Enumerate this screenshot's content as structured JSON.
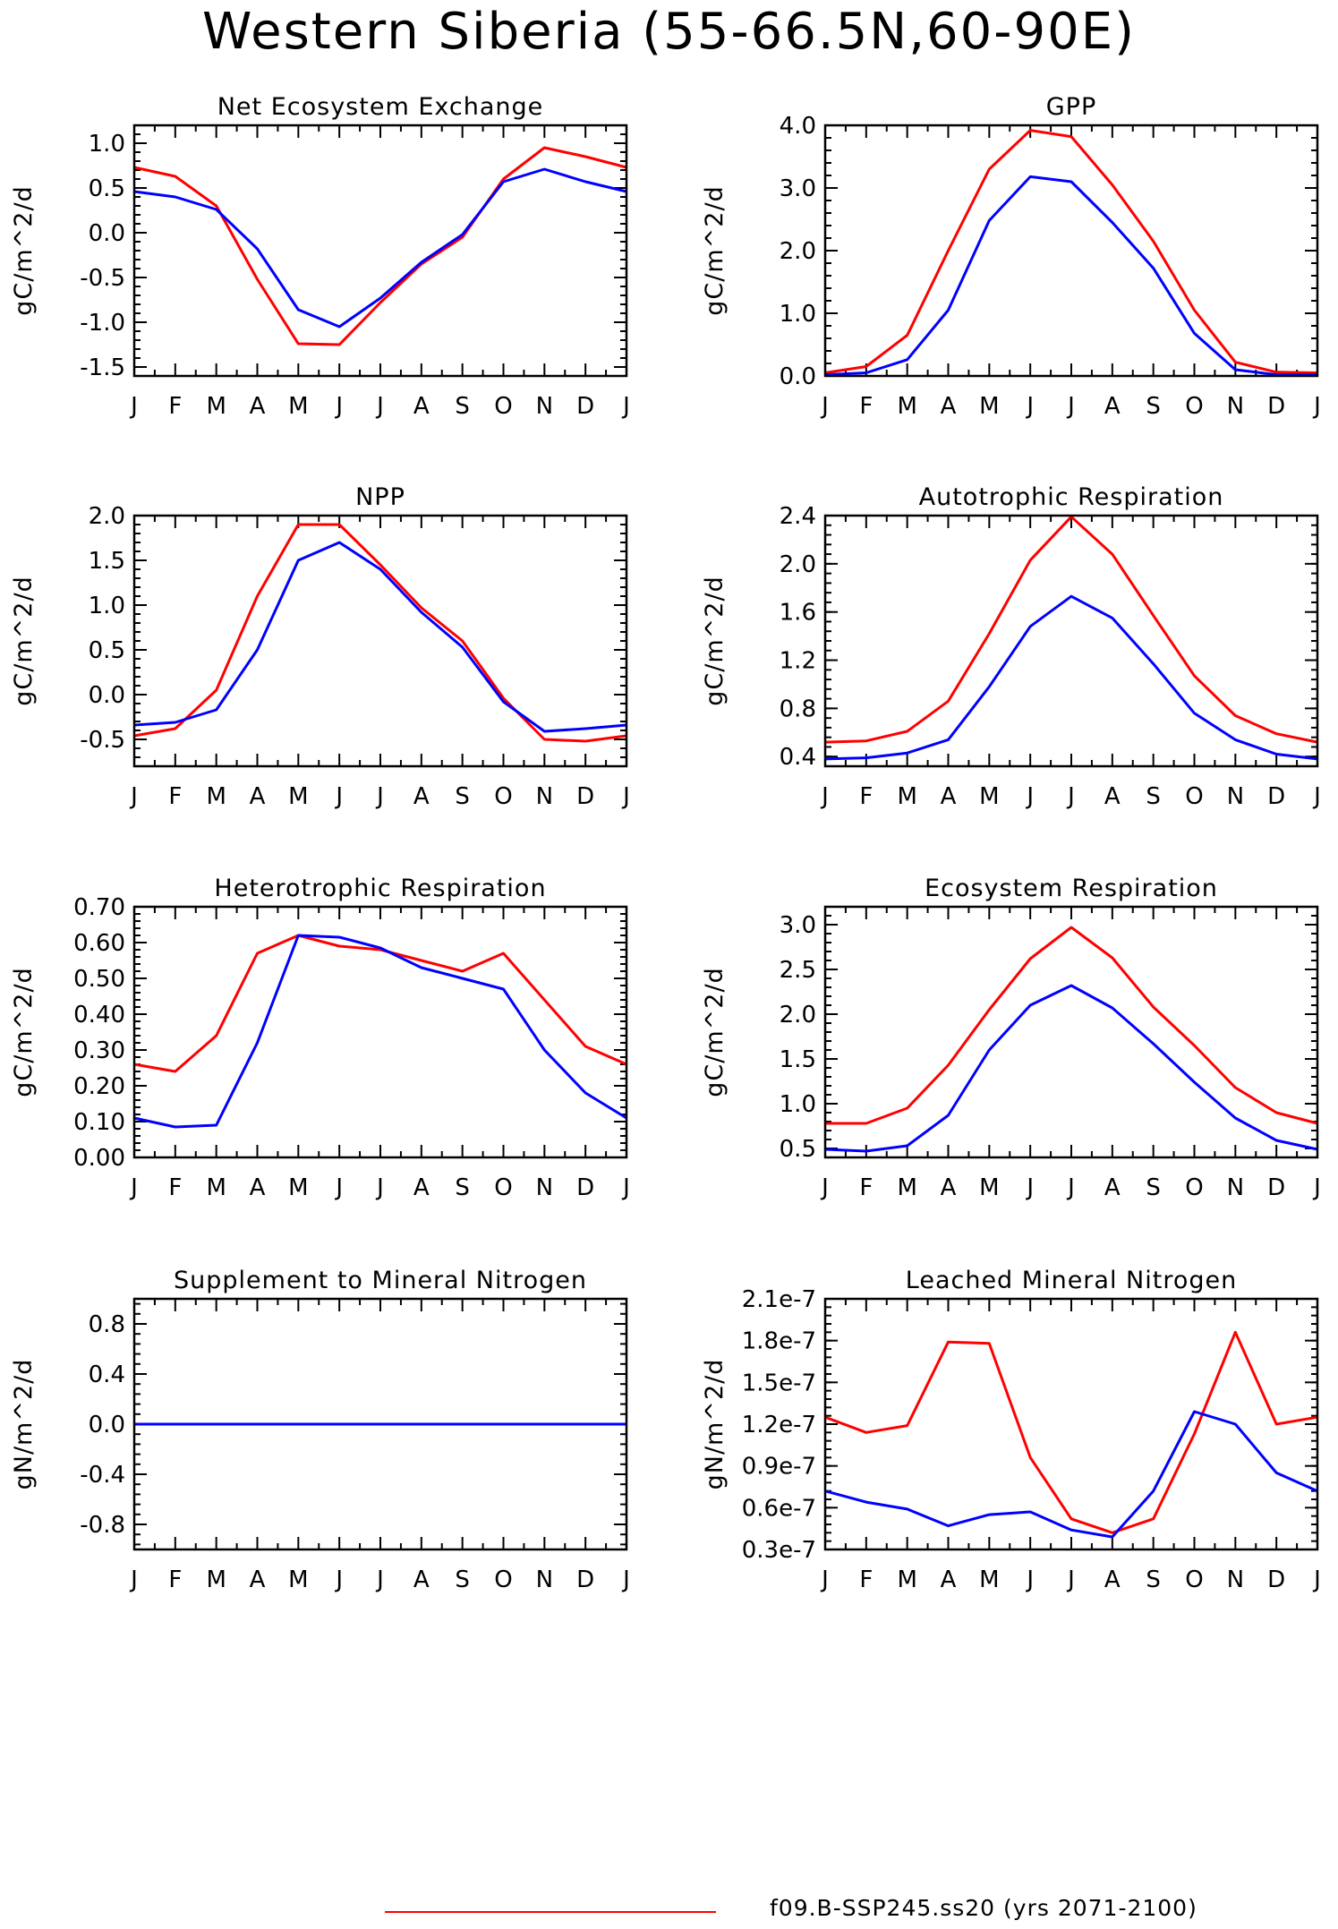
{
  "title": "Western Siberia (55-66.5N,60-90E)",
  "legend": [
    {
      "label": "f09.B-SSP245.ss20 (yrs 2071-2100)",
      "color": "#ff0000"
    }
  ],
  "colors": {
    "red": "#ff0000",
    "blue": "#0000ff"
  },
  "chart_data": [
    {
      "type": "line",
      "title": "Net Ecosystem Exchange",
      "ylabel": "gC/m^2/d",
      "categories": [
        "J",
        "F",
        "M",
        "A",
        "M",
        "J",
        "J",
        "A",
        "S",
        "O",
        "N",
        "D",
        "J"
      ],
      "ylim": [
        -1.6,
        1.2
      ],
      "yticks": [
        -1.5,
        -1.0,
        -0.5,
        0.0,
        0.5,
        1.0
      ],
      "ytick_labels": [
        "-1.5",
        "-1.0",
        "-0.5",
        "0.0",
        "0.5",
        "1.0"
      ],
      "series": [
        {
          "color": "#ff0000",
          "values": [
            0.73,
            0.63,
            0.3,
            -0.52,
            -1.24,
            -1.25,
            -0.78,
            -0.35,
            -0.05,
            0.6,
            0.95,
            0.85,
            0.73
          ]
        },
        {
          "color": "#0000ff",
          "values": [
            0.46,
            0.4,
            0.26,
            -0.18,
            -0.86,
            -1.05,
            -0.73,
            -0.33,
            -0.02,
            0.57,
            0.71,
            0.57,
            0.46
          ]
        }
      ]
    },
    {
      "type": "line",
      "title": "GPP",
      "ylabel": "gC/m^2/d",
      "categories": [
        "J",
        "F",
        "M",
        "A",
        "M",
        "J",
        "J",
        "A",
        "S",
        "O",
        "N",
        "D",
        "J"
      ],
      "ylim": [
        0,
        4.0
      ],
      "yticks": [
        0,
        1,
        2,
        3,
        4
      ],
      "ytick_labels": [
        "0.0",
        "1.0",
        "2.0",
        "3.0",
        "4.0"
      ],
      "series": [
        {
          "color": "#ff0000",
          "values": [
            0.05,
            0.15,
            0.65,
            2.0,
            3.3,
            3.92,
            3.82,
            3.05,
            2.15,
            1.05,
            0.22,
            0.06,
            0.05
          ]
        },
        {
          "color": "#0000ff",
          "values": [
            0.02,
            0.05,
            0.26,
            1.05,
            2.48,
            3.18,
            3.1,
            2.45,
            1.72,
            0.68,
            0.1,
            0.02,
            0.02
          ]
        }
      ]
    },
    {
      "type": "line",
      "title": "NPP",
      "ylabel": "gC/m^2/d",
      "categories": [
        "J",
        "F",
        "M",
        "A",
        "M",
        "J",
        "J",
        "A",
        "S",
        "O",
        "N",
        "D",
        "J"
      ],
      "ylim": [
        -0.8,
        2.0
      ],
      "yticks": [
        -0.5,
        0.0,
        0.5,
        1.0,
        1.5,
        2.0
      ],
      "ytick_labels": [
        "-0.5",
        "0.0",
        "0.5",
        "1.0",
        "1.5",
        "2.0"
      ],
      "series": [
        {
          "color": "#ff0000",
          "values": [
            -0.46,
            -0.38,
            0.05,
            1.1,
            1.9,
            1.9,
            1.45,
            0.97,
            0.6,
            -0.04,
            -0.5,
            -0.52,
            -0.46
          ]
        },
        {
          "color": "#0000ff",
          "values": [
            -0.34,
            -0.31,
            -0.17,
            0.5,
            1.5,
            1.7,
            1.4,
            0.92,
            0.53,
            -0.08,
            -0.41,
            -0.38,
            -0.34
          ]
        }
      ]
    },
    {
      "type": "line",
      "title": "Autotrophic Respiration",
      "ylabel": "gC/m^2/d",
      "categories": [
        "J",
        "F",
        "M",
        "A",
        "M",
        "J",
        "J",
        "A",
        "S",
        "O",
        "N",
        "D",
        "J"
      ],
      "ylim": [
        0.32,
        2.4
      ],
      "yticks": [
        0.4,
        0.8,
        1.2,
        1.6,
        2.0,
        2.4
      ],
      "ytick_labels": [
        "0.4",
        "0.8",
        "1.2",
        "1.6",
        "2.0",
        "2.4"
      ],
      "series": [
        {
          "color": "#ff0000",
          "values": [
            0.52,
            0.53,
            0.61,
            0.86,
            1.42,
            2.03,
            2.39,
            2.08,
            1.57,
            1.07,
            0.74,
            0.59,
            0.52
          ]
        },
        {
          "color": "#0000ff",
          "values": [
            0.38,
            0.39,
            0.43,
            0.54,
            0.98,
            1.48,
            1.73,
            1.55,
            1.17,
            0.76,
            0.54,
            0.42,
            0.38
          ]
        }
      ]
    },
    {
      "type": "line",
      "title": "Heterotrophic Respiration",
      "ylabel": "gC/m^2/d",
      "categories": [
        "J",
        "F",
        "M",
        "A",
        "M",
        "J",
        "J",
        "A",
        "S",
        "O",
        "N",
        "D",
        "J"
      ],
      "ylim": [
        0,
        0.7
      ],
      "yticks": [
        0,
        0.1,
        0.2,
        0.3,
        0.4,
        0.5,
        0.6,
        0.7
      ],
      "ytick_labels": [
        "0.00",
        "0.10",
        "0.20",
        "0.30",
        "0.40",
        "0.50",
        "0.60",
        "0.70"
      ],
      "series": [
        {
          "color": "#ff0000",
          "values": [
            0.26,
            0.24,
            0.34,
            0.57,
            0.62,
            0.59,
            0.58,
            0.55,
            0.52,
            0.57,
            0.44,
            0.31,
            0.26
          ]
        },
        {
          "color": "#0000ff",
          "values": [
            0.11,
            0.085,
            0.09,
            0.32,
            0.62,
            0.615,
            0.585,
            0.53,
            0.5,
            0.47,
            0.3,
            0.18,
            0.11
          ]
        }
      ]
    },
    {
      "type": "line",
      "title": "Ecosystem Respiration",
      "ylabel": "gC/m^2/d",
      "categories": [
        "J",
        "F",
        "M",
        "A",
        "M",
        "J",
        "J",
        "A",
        "S",
        "O",
        "N",
        "D",
        "J"
      ],
      "ylim": [
        0.4,
        3.2
      ],
      "yticks": [
        0.5,
        1.0,
        1.5,
        2.0,
        2.5,
        3.0
      ],
      "ytick_labels": [
        "0.5",
        "1.0",
        "1.5",
        "2.0",
        "2.5",
        "3.0"
      ],
      "series": [
        {
          "color": "#ff0000",
          "values": [
            0.78,
            0.78,
            0.95,
            1.43,
            2.05,
            2.62,
            2.97,
            2.63,
            2.08,
            1.65,
            1.18,
            0.9,
            0.78
          ]
        },
        {
          "color": "#0000ff",
          "values": [
            0.49,
            0.47,
            0.53,
            0.87,
            1.6,
            2.1,
            2.32,
            2.07,
            1.67,
            1.24,
            0.84,
            0.59,
            0.49
          ]
        }
      ]
    },
    {
      "type": "line",
      "title": "Supplement to Mineral Nitrogen",
      "ylabel": "gN/m^2/d",
      "categories": [
        "J",
        "F",
        "M",
        "A",
        "M",
        "J",
        "J",
        "A",
        "S",
        "O",
        "N",
        "D",
        "J"
      ],
      "ylim": [
        -1.0,
        1.0
      ],
      "yticks": [
        -0.8,
        -0.4,
        0.0,
        0.4,
        0.8
      ],
      "ytick_labels": [
        "-0.8",
        "-0.4",
        "0.0",
        "0.4",
        "0.8"
      ],
      "series": [
        {
          "color": "#ff0000",
          "values": [
            0,
            0,
            0,
            0,
            0,
            0,
            0,
            0,
            0,
            0,
            0,
            0,
            0
          ]
        },
        {
          "color": "#0000ff",
          "values": [
            0,
            0,
            0,
            0,
            0,
            0,
            0,
            0,
            0,
            0,
            0,
            0,
            0
          ]
        }
      ]
    },
    {
      "type": "line",
      "title": "Leached Mineral Nitrogen",
      "ylabel": "gN/m^2/d",
      "categories": [
        "J",
        "F",
        "M",
        "A",
        "M",
        "J",
        "J",
        "A",
        "S",
        "O",
        "N",
        "D",
        "J"
      ],
      "ylim": [
        3e-08,
        2.1e-07
      ],
      "yticks": [
        3e-08,
        6e-08,
        9e-08,
        1.2e-07,
        1.5e-07,
        1.8e-07,
        2.1e-07
      ],
      "ytick_labels": [
        "0.3e-7",
        "0.6e-7",
        "0.9e-7",
        "1.2e-7",
        "1.5e-7",
        "1.8e-7",
        "2.1e-7"
      ],
      "series": [
        {
          "color": "#ff0000",
          "values": [
            1.25e-07,
            1.14e-07,
            1.19e-07,
            1.79e-07,
            1.78e-07,
            9.6e-08,
            5.2e-08,
            4.2e-08,
            5.2e-08,
            1.13e-07,
            1.86e-07,
            1.2e-07,
            1.25e-07
          ]
        },
        {
          "color": "#0000ff",
          "values": [
            7.2e-08,
            6.4e-08,
            5.9e-08,
            4.7e-08,
            5.5e-08,
            5.7e-08,
            4.4e-08,
            3.9e-08,
            7.2e-08,
            1.29e-07,
            1.2e-07,
            8.5e-08,
            7.2e-08
          ]
        }
      ]
    }
  ]
}
